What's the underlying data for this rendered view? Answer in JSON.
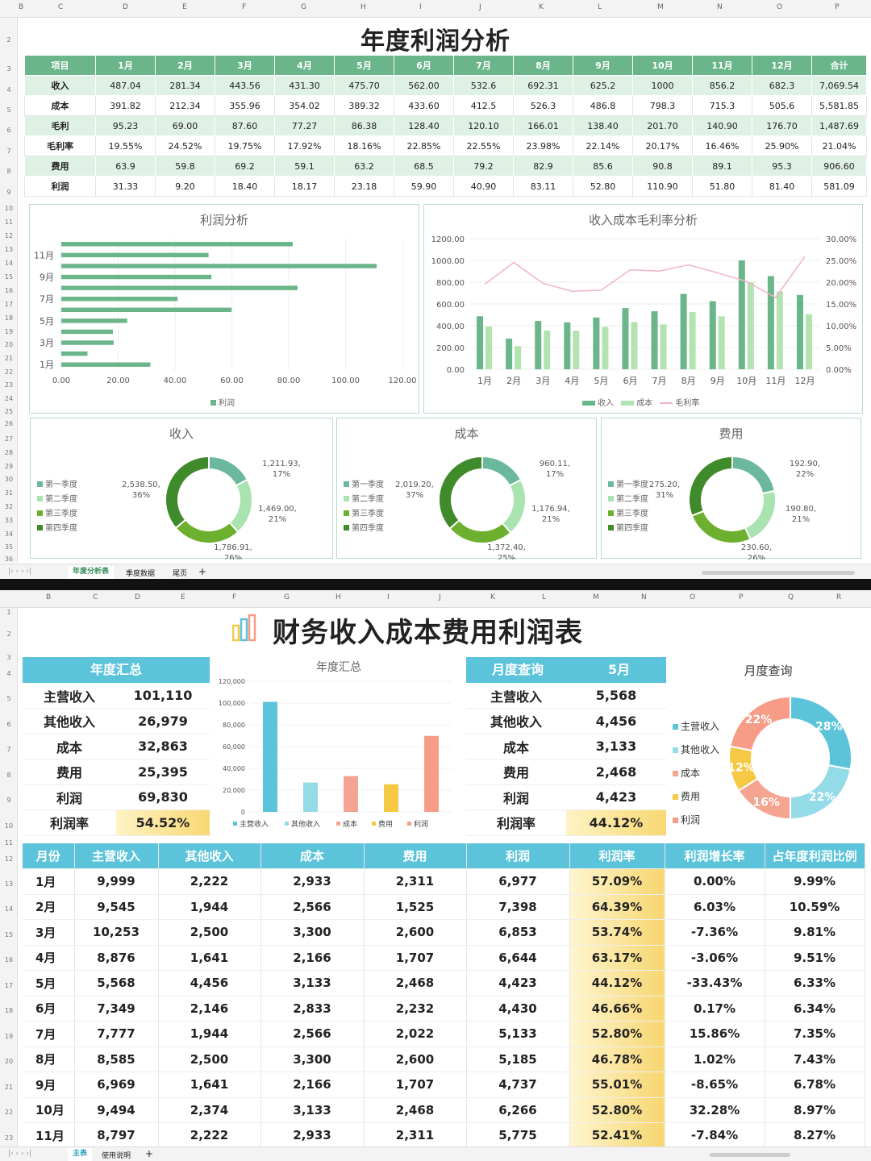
{
  "top": {
    "col_letters": [
      "B",
      "C",
      "D",
      "E",
      "F",
      "G",
      "H",
      "I",
      "J",
      "K",
      "L",
      "M",
      "N",
      "O",
      "P"
    ],
    "row_numbers": [
      "2",
      "3",
      "4",
      "5",
      "6",
      "7",
      "8",
      "9",
      "10",
      "11",
      "12",
      "13",
      "14",
      "15",
      "16",
      "17",
      "18",
      "19",
      "20",
      "21",
      "22",
      "23",
      "24",
      "25",
      "26",
      "27",
      "28",
      "29",
      "30",
      "31",
      "32",
      "33",
      "34",
      "35",
      "36"
    ],
    "title": "年度利润分析",
    "table_header": [
      "项目",
      "1月",
      "2月",
      "3月",
      "4月",
      "5月",
      "6月",
      "7月",
      "8月",
      "9月",
      "10月",
      "11月",
      "12月",
      "合计"
    ],
    "table_rows": [
      [
        "收入",
        "487.04",
        "281.34",
        "443.56",
        "431.30",
        "475.70",
        "562.00",
        "532.6",
        "692.31",
        "625.2",
        "1000",
        "856.2",
        "682.3",
        "7,069.54"
      ],
      [
        "成本",
        "391.82",
        "212.34",
        "355.96",
        "354.02",
        "389.32",
        "433.60",
        "412.5",
        "526.3",
        "486.8",
        "798.3",
        "715.3",
        "505.6",
        "5,581.85"
      ],
      [
        "毛利",
        "95.23",
        "69.00",
        "87.60",
        "77.27",
        "86.38",
        "128.40",
        "120.10",
        "166.01",
        "138.40",
        "201.70",
        "140.90",
        "176.70",
        "1,487.69"
      ],
      [
        "毛利率",
        "19.55%",
        "24.52%",
        "19.75%",
        "17.92%",
        "18.16%",
        "22.85%",
        "22.55%",
        "23.98%",
        "22.14%",
        "20.17%",
        "16.46%",
        "25.90%",
        "21.04%"
      ],
      [
        "费用",
        "63.9",
        "59.8",
        "69.2",
        "59.1",
        "63.2",
        "68.5",
        "79.2",
        "82.9",
        "85.6",
        "90.8",
        "89.1",
        "95.3",
        "906.60"
      ],
      [
        "利润",
        "31.33",
        "9.20",
        "18.40",
        "18.17",
        "23.18",
        "59.90",
        "40.90",
        "83.11",
        "52.80",
        "110.90",
        "51.80",
        "81.40",
        "581.09"
      ]
    ],
    "tabs": [
      "年度分析表",
      "季度数据",
      "尾页",
      "+"
    ]
  },
  "bottom": {
    "col_letters": [
      "B",
      "C",
      "D",
      "E",
      "F",
      "G",
      "H",
      "I",
      "J",
      "K",
      "L",
      "M",
      "N",
      "O",
      "P",
      "Q",
      "R"
    ],
    "row_numbers": [
      "1",
      "2",
      "3",
      "4",
      "5",
      "6",
      "7",
      "8",
      "9",
      "10",
      "11",
      "12",
      "13",
      "14",
      "15",
      "16",
      "17",
      "18",
      "19",
      "20",
      "21",
      "22",
      "23"
    ],
    "title": "财务收入成本费用利润表",
    "annual_header": "年度汇总",
    "annual_rows": [
      [
        "主营收入",
        "101,110"
      ],
      [
        "其他收入",
        "26,979"
      ],
      [
        "成本",
        "32,863"
      ],
      [
        "费用",
        "25,395"
      ],
      [
        "利润",
        "69,830"
      ],
      [
        "利润率",
        "54.52%"
      ]
    ],
    "annual_chart_title": "年度汇总",
    "monthly_header": "月度查询",
    "monthly_month": "5月",
    "monthly_rows": [
      [
        "主营收入",
        "5,568"
      ],
      [
        "其他收入",
        "4,456"
      ],
      [
        "成本",
        "3,133"
      ],
      [
        "费用",
        "2,468"
      ],
      [
        "利润",
        "4,423"
      ],
      [
        "利润率",
        "44.12%"
      ]
    ],
    "monthly_chart_title": "月度查询",
    "table_header": [
      "月份",
      "主营收入",
      "其他收入",
      "成本",
      "费用",
      "利润",
      "利润率",
      "利润增长率",
      "占年度利润比例"
    ],
    "table_rows": [
      [
        "1月",
        "9,999",
        "2,222",
        "2,933",
        "2,311",
        "6,977",
        "57.09%",
        "0.00%",
        "9.99%"
      ],
      [
        "2月",
        "9,545",
        "1,944",
        "2,566",
        "1,525",
        "7,398",
        "64.39%",
        "6.03%",
        "10.59%"
      ],
      [
        "3月",
        "10,253",
        "2,500",
        "3,300",
        "2,600",
        "6,853",
        "53.74%",
        "-7.36%",
        "9.81%"
      ],
      [
        "4月",
        "8,876",
        "1,641",
        "2,166",
        "1,707",
        "6,644",
        "63.17%",
        "-3.06%",
        "9.51%"
      ],
      [
        "5月",
        "5,568",
        "4,456",
        "3,133",
        "2,468",
        "4,423",
        "44.12%",
        "-33.43%",
        "6.33%"
      ],
      [
        "6月",
        "7,349",
        "2,146",
        "2,833",
        "2,232",
        "4,430",
        "46.66%",
        "0.17%",
        "6.34%"
      ],
      [
        "7月",
        "7,777",
        "1,944",
        "2,566",
        "2,022",
        "5,133",
        "52.80%",
        "15.86%",
        "7.35%"
      ],
      [
        "8月",
        "8,585",
        "2,500",
        "3,300",
        "2,600",
        "5,185",
        "46.78%",
        "1.02%",
        "7.43%"
      ],
      [
        "9月",
        "6,969",
        "1,641",
        "2,166",
        "1,707",
        "4,737",
        "55.01%",
        "-8.65%",
        "6.78%"
      ],
      [
        "10月",
        "9,494",
        "2,374",
        "3,133",
        "2,468",
        "6,266",
        "52.80%",
        "32.28%",
        "8.97%"
      ],
      [
        "11月",
        "8,797",
        "2,222",
        "2,933",
        "2,311",
        "5,775",
        "52.41%",
        "-7.84%",
        "8.27%"
      ]
    ],
    "tabs": [
      "主表",
      "使用说明",
      "+"
    ]
  },
  "chart_data": [
    {
      "type": "bar",
      "orientation": "horizontal",
      "title": "利润分析",
      "categories": [
        "1月",
        "2月",
        "3月",
        "4月",
        "5月",
        "6月",
        "7月",
        "8月",
        "9月",
        "10月",
        "11月",
        "12月"
      ],
      "series": [
        {
          "name": "利润",
          "values": [
            31.33,
            9.2,
            18.4,
            18.17,
            23.18,
            59.9,
            40.9,
            83.11,
            52.8,
            110.9,
            51.8,
            81.4
          ]
        }
      ],
      "tick_labels_y": [
        "1月",
        "3月",
        "5月",
        "7月",
        "9月",
        "11月"
      ],
      "xlim": [
        0,
        120
      ],
      "xticks": [
        "0.00",
        "20.00",
        "40.00",
        "60.00",
        "80.00",
        "100.00",
        "120.00"
      ],
      "color": "#6ab58a"
    },
    {
      "type": "bar",
      "title": "收入成本毛利率分析",
      "categories": [
        "1月",
        "2月",
        "3月",
        "4月",
        "5月",
        "6月",
        "7月",
        "8月",
        "9月",
        "10月",
        "11月",
        "12月"
      ],
      "series": [
        {
          "name": "收入",
          "values": [
            487.04,
            281.34,
            443.56,
            431.3,
            475.7,
            562,
            532.6,
            692.31,
            625.2,
            1000,
            856.2,
            682.3
          ]
        },
        {
          "name": "成本",
          "values": [
            391.82,
            212.34,
            355.96,
            354.02,
            389.32,
            433.6,
            412.5,
            526.3,
            486.8,
            798.3,
            715.3,
            505.6
          ]
        },
        {
          "name": "毛利率",
          "type": "line",
          "axis": "right",
          "values": [
            19.55,
            24.52,
            19.75,
            17.92,
            18.16,
            22.85,
            22.55,
            23.98,
            22.14,
            20.17,
            16.46,
            25.9
          ]
        }
      ],
      "ylim": [
        0,
        1200
      ],
      "yticks": [
        "0.00",
        "200.00",
        "400.00",
        "600.00",
        "800.00",
        "1000.00",
        "1200.00"
      ],
      "y2lim": [
        0,
        30
      ],
      "y2ticks": [
        "0.00%",
        "5.00%",
        "10.00%",
        "15.00%",
        "20.00%",
        "25.00%",
        "30.00%"
      ],
      "colors": [
        "#6ab58a",
        "#b2e3b0",
        "#f2b3c6"
      ]
    },
    {
      "type": "pie",
      "title": "收入",
      "labels": [
        "第一季度",
        "第二季度",
        "第三季度",
        "第四季度"
      ],
      "values": [
        1211.93,
        1469.0,
        1786.91,
        2538.5
      ],
      "data_labels": [
        "1,211.93,\n17%",
        "1,469.00,\n21%",
        "1,786.91,\n26%",
        "2,538.50,\n36%"
      ],
      "colors": [
        "#6bb89c",
        "#a8e3b0",
        "#6daf2e",
        "#3f8a2a"
      ]
    },
    {
      "type": "pie",
      "title": "成本",
      "labels": [
        "第一季度",
        "第二季度",
        "第三季度",
        "第四季度"
      ],
      "values": [
        960.11,
        1176.94,
        1372.4,
        2019.2
      ],
      "data_labels": [
        "960.11,\n17%",
        "1,176.94,\n21%",
        "1,372.40,\n25%",
        "2,019.20,\n37%"
      ],
      "colors": [
        "#6bb89c",
        "#a8e3b0",
        "#6daf2e",
        "#3f8a2a"
      ]
    },
    {
      "type": "pie",
      "title": "费用",
      "labels": [
        "第一季度",
        "第二季度",
        "第三季度",
        "第四季度"
      ],
      "values": [
        192.9,
        190.8,
        230.6,
        275.2
      ],
      "data_labels": [
        "192.90,\n22%",
        "190.80,\n21%",
        "230.60,\n26%",
        "275.20,\n31%"
      ],
      "colors": [
        "#6bb89c",
        "#a8e3b0",
        "#6daf2e",
        "#3f8a2a"
      ]
    },
    {
      "type": "bar",
      "title": "年度汇总",
      "categories": [
        "主营收入",
        "其他收入",
        "成本",
        "费用",
        "利润"
      ],
      "values": [
        101110,
        26979,
        32863,
        25395,
        69830
      ],
      "ylim": [
        0,
        120000
      ],
      "yticks": [
        "0",
        "20,000",
        "40,000",
        "60,000",
        "80,000",
        "100,000",
        "120,000"
      ],
      "colors": [
        "#5cc4da",
        "#94dbe8",
        "#f4a490",
        "#f6c945",
        "#f79d87"
      ]
    },
    {
      "type": "pie",
      "title": "月度查询",
      "labels": [
        "主营收入",
        "其他收入",
        "成本",
        "费用",
        "利润"
      ],
      "values": [
        28,
        22,
        16,
        12,
        22
      ],
      "data_labels": [
        "28%",
        "22%",
        "16%",
        "12%",
        "22%"
      ],
      "colors": [
        "#5cc4da",
        "#94dbe8",
        "#f4a490",
        "#f6c945",
        "#f79d87"
      ]
    }
  ]
}
